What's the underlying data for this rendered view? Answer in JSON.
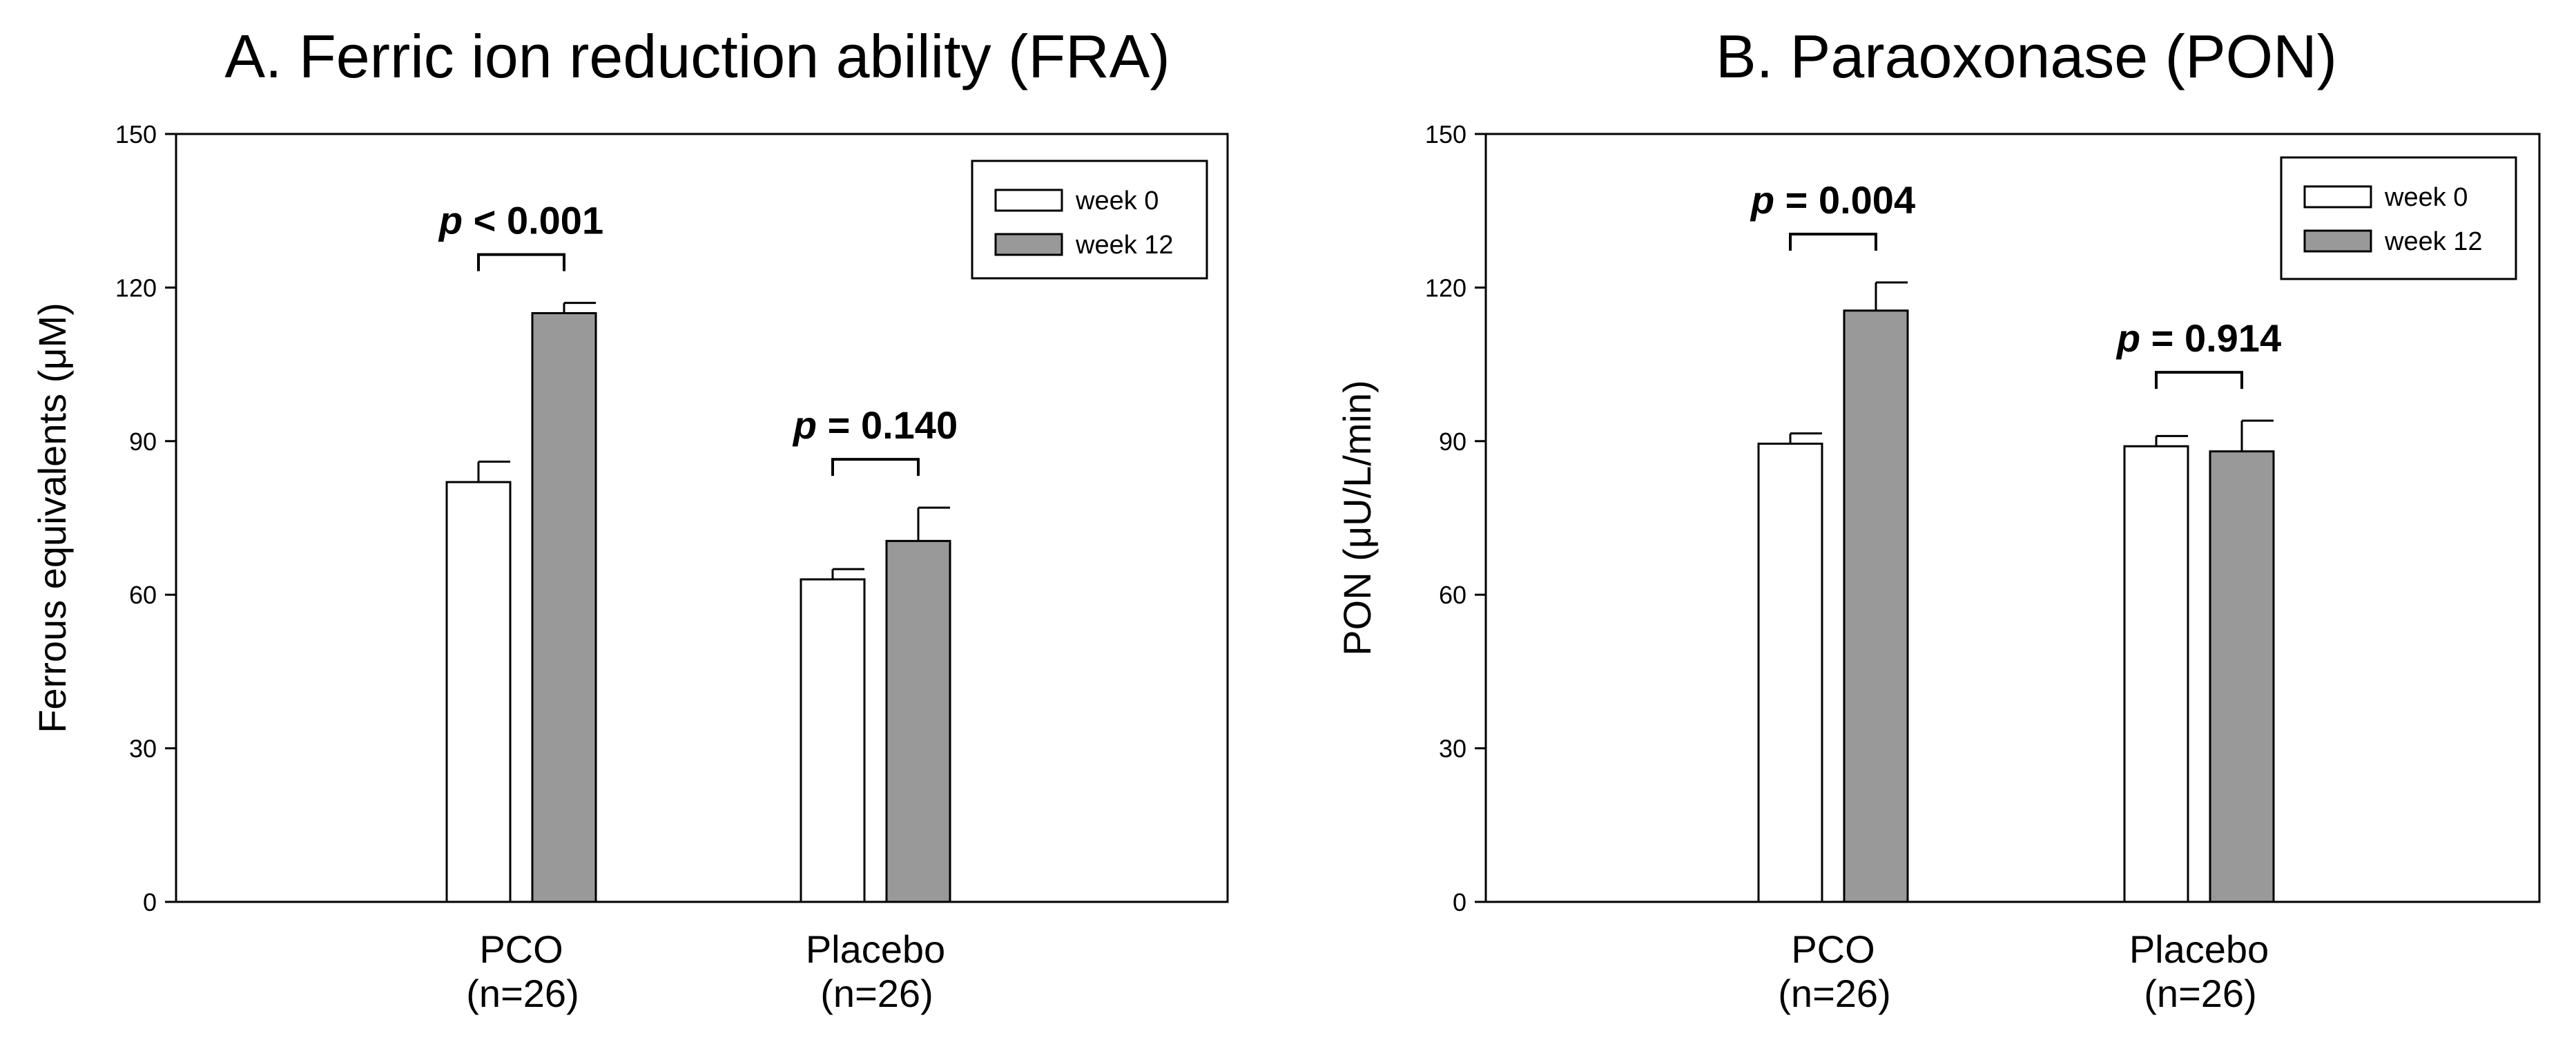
{
  "chart_data": [
    {
      "type": "bar",
      "title": "A. Ferric ion reduction ability (FRA)",
      "ylabel": "Ferrous equivalents (μM)",
      "xlabel": "",
      "ylim": [
        0,
        150
      ],
      "yticks": [
        0,
        30,
        60,
        90,
        120,
        150
      ],
      "grid": false,
      "legend_position": "top-right",
      "categories": [
        "PCO",
        "Placebo"
      ],
      "category_sublabels": [
        "(n=26)",
        "(n=26)"
      ],
      "series": [
        {
          "name": "week 0",
          "color": "#ffffff",
          "values": [
            82,
            63
          ],
          "errors": [
            4,
            2
          ]
        },
        {
          "name": "week 12",
          "color": "#999999",
          "values": [
            115,
            70.5
          ],
          "errors": [
            2,
            6.5
          ]
        }
      ],
      "annotations": [
        {
          "category": "PCO",
          "italic": "p",
          "rest": " < 0.001"
        },
        {
          "category": "Placebo",
          "italic": "p",
          "rest": " = 0.140"
        }
      ]
    },
    {
      "type": "bar",
      "title": "B. Paraoxonase (PON)",
      "ylabel": "PON (μU/L/min)",
      "xlabel": "",
      "ylim": [
        0,
        150
      ],
      "yticks": [
        0,
        30,
        60,
        90,
        120,
        150
      ],
      "grid": false,
      "legend_position": "top-right",
      "categories": [
        "PCO",
        "Placebo"
      ],
      "category_sublabels": [
        "(n=26)",
        "(n=26)"
      ],
      "series": [
        {
          "name": "week 0",
          "color": "#ffffff",
          "values": [
            89.5,
            89
          ],
          "errors": [
            2,
            2
          ]
        },
        {
          "name": "week 12",
          "color": "#999999",
          "values": [
            115.5,
            88
          ],
          "errors": [
            5.5,
            6
          ]
        }
      ],
      "annotations": [
        {
          "category": "PCO",
          "italic": "p",
          "rest": " = 0.004"
        },
        {
          "category": "Placebo",
          "italic": "p",
          "rest": " = 0.914"
        }
      ]
    }
  ]
}
